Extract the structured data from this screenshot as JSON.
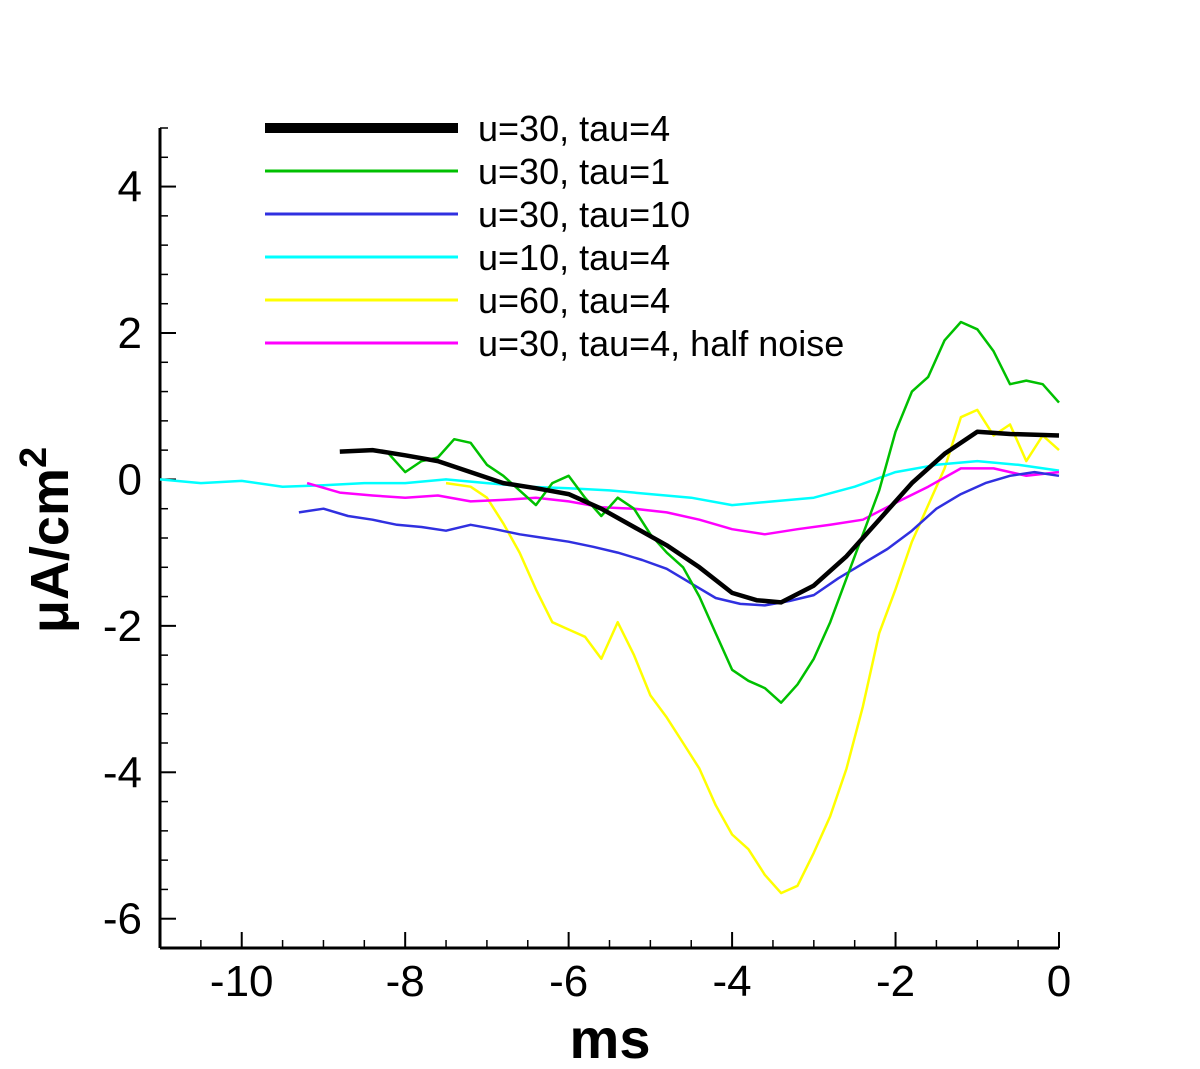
{
  "chart_data": {
    "type": "line",
    "xlabel": "ms",
    "ylabel_main": "μA/cm",
    "ylabel_sup": "2",
    "xlim": [
      -11,
      0
    ],
    "ylim": [
      -6.4,
      4.8
    ],
    "x_ticks": [
      -10,
      -8,
      -6,
      -4,
      -2,
      0
    ],
    "x_tick_labels": [
      "-10",
      "-8",
      "-6",
      "-4",
      "-2",
      "0"
    ],
    "y_ticks": [
      4,
      2,
      0,
      -2,
      -4,
      -6
    ],
    "y_tick_labels": [
      "4",
      "2",
      "0",
      "-2",
      "-4",
      "-6"
    ],
    "grid": false,
    "legend_position": "top-left",
    "series": [
      {
        "name": "u=30, tau=4",
        "color": "#000000",
        "style": "thick",
        "x": [
          -8.8,
          -8.4,
          -8.0,
          -7.6,
          -7.2,
          -6.8,
          -6.4,
          -6.0,
          -5.6,
          -5.2,
          -4.8,
          -4.4,
          -4.0,
          -3.7,
          -3.4,
          -3.0,
          -2.6,
          -2.2,
          -1.8,
          -1.4,
          -1.0,
          -0.6,
          0.0
        ],
        "y": [
          0.38,
          0.4,
          0.33,
          0.25,
          0.1,
          -0.05,
          -0.12,
          -0.2,
          -0.4,
          -0.65,
          -0.9,
          -1.2,
          -1.55,
          -1.65,
          -1.68,
          -1.45,
          -1.05,
          -0.55,
          -0.05,
          0.35,
          0.65,
          0.62,
          0.6
        ]
      },
      {
        "name": "u=30, tau=1",
        "color": "#00c000",
        "style": "normal",
        "x": [
          -8.2,
          -8.0,
          -7.8,
          -7.6,
          -7.4,
          -7.2,
          -7.0,
          -6.8,
          -6.6,
          -6.4,
          -6.2,
          -6.0,
          -5.8,
          -5.6,
          -5.4,
          -5.2,
          -5.0,
          -4.8,
          -4.6,
          -4.4,
          -4.2,
          -4.0,
          -3.8,
          -3.6,
          -3.4,
          -3.2,
          -3.0,
          -2.8,
          -2.6,
          -2.4,
          -2.2,
          -2.0,
          -1.8,
          -1.6,
          -1.4,
          -1.2,
          -1.0,
          -0.8,
          -0.6,
          -0.4,
          -0.2,
          0.0
        ],
        "y": [
          0.35,
          0.1,
          0.25,
          0.3,
          0.55,
          0.5,
          0.2,
          0.05,
          -0.15,
          -0.35,
          -0.05,
          0.05,
          -0.25,
          -0.5,
          -0.25,
          -0.4,
          -0.75,
          -1.0,
          -1.2,
          -1.6,
          -2.1,
          -2.6,
          -2.75,
          -2.85,
          -3.05,
          -2.8,
          -2.45,
          -1.95,
          -1.35,
          -0.75,
          -0.15,
          0.65,
          1.2,
          1.4,
          1.9,
          2.15,
          2.05,
          1.75,
          1.3,
          1.35,
          1.3,
          1.05
        ]
      },
      {
        "name": "u=30, tau=10",
        "color": "#3030e0",
        "style": "normal",
        "x": [
          -9.3,
          -9.0,
          -8.7,
          -8.4,
          -8.1,
          -7.8,
          -7.5,
          -7.2,
          -6.9,
          -6.6,
          -6.3,
          -6.0,
          -5.7,
          -5.4,
          -5.1,
          -4.8,
          -4.5,
          -4.2,
          -3.9,
          -3.6,
          -3.3,
          -3.0,
          -2.7,
          -2.4,
          -2.1,
          -1.8,
          -1.5,
          -1.2,
          -0.9,
          -0.6,
          -0.3,
          0.0
        ],
        "y": [
          -0.45,
          -0.4,
          -0.5,
          -0.55,
          -0.62,
          -0.65,
          -0.7,
          -0.62,
          -0.68,
          -0.75,
          -0.8,
          -0.85,
          -0.92,
          -1.0,
          -1.1,
          -1.22,
          -1.42,
          -1.62,
          -1.7,
          -1.72,
          -1.66,
          -1.58,
          -1.35,
          -1.15,
          -0.95,
          -0.7,
          -0.4,
          -0.2,
          -0.05,
          0.05,
          0.1,
          0.05
        ]
      },
      {
        "name": "u=10, tau=4",
        "color": "#00ffff",
        "style": "normal",
        "x": [
          -11.0,
          -10.5,
          -10.0,
          -9.5,
          -9.0,
          -8.5,
          -8.0,
          -7.5,
          -7.0,
          -6.5,
          -6.0,
          -5.5,
          -5.0,
          -4.5,
          -4.0,
          -3.5,
          -3.0,
          -2.5,
          -2.0,
          -1.5,
          -1.0,
          -0.5,
          0.0
        ],
        "y": [
          0.0,
          -0.05,
          -0.02,
          -0.1,
          -0.08,
          -0.05,
          -0.05,
          0.0,
          -0.05,
          -0.1,
          -0.12,
          -0.15,
          -0.2,
          -0.25,
          -0.35,
          -0.3,
          -0.25,
          -0.1,
          0.1,
          0.2,
          0.25,
          0.2,
          0.12
        ]
      },
      {
        "name": "u=60, tau=4",
        "color": "#ffff00",
        "style": "normal",
        "x": [
          -7.5,
          -7.2,
          -7.0,
          -6.8,
          -6.6,
          -6.4,
          -6.2,
          -6.0,
          -5.8,
          -5.6,
          -5.4,
          -5.2,
          -5.0,
          -4.8,
          -4.6,
          -4.4,
          -4.2,
          -4.0,
          -3.8,
          -3.6,
          -3.4,
          -3.2,
          -3.0,
          -2.8,
          -2.6,
          -2.4,
          -2.2,
          -2.0,
          -1.8,
          -1.6,
          -1.4,
          -1.2,
          -1.0,
          -0.8,
          -0.6,
          -0.4,
          -0.2,
          0.0
        ],
        "y": [
          -0.05,
          -0.1,
          -0.25,
          -0.6,
          -1.0,
          -1.5,
          -1.95,
          -2.05,
          -2.15,
          -2.45,
          -1.95,
          -2.4,
          -2.95,
          -3.25,
          -3.6,
          -3.95,
          -4.45,
          -4.85,
          -5.05,
          -5.4,
          -5.65,
          -5.55,
          -5.1,
          -4.6,
          -3.95,
          -3.1,
          -2.1,
          -1.5,
          -0.85,
          -0.35,
          0.15,
          0.85,
          0.95,
          0.6,
          0.75,
          0.25,
          0.6,
          0.4
        ]
      },
      {
        "name": "u=30, tau=4, half noise",
        "color": "#ff00ff",
        "style": "normal",
        "x": [
          -9.2,
          -8.8,
          -8.4,
          -8.0,
          -7.6,
          -7.2,
          -6.8,
          -6.4,
          -6.0,
          -5.6,
          -5.2,
          -4.8,
          -4.4,
          -4.0,
          -3.6,
          -3.2,
          -2.8,
          -2.4,
          -2.0,
          -1.6,
          -1.2,
          -0.8,
          -0.4,
          0.0
        ],
        "y": [
          -0.05,
          -0.18,
          -0.22,
          -0.25,
          -0.22,
          -0.3,
          -0.28,
          -0.25,
          -0.3,
          -0.38,
          -0.4,
          -0.45,
          -0.55,
          -0.68,
          -0.75,
          -0.68,
          -0.62,
          -0.55,
          -0.32,
          -0.1,
          0.15,
          0.15,
          0.05,
          0.1
        ]
      }
    ]
  }
}
